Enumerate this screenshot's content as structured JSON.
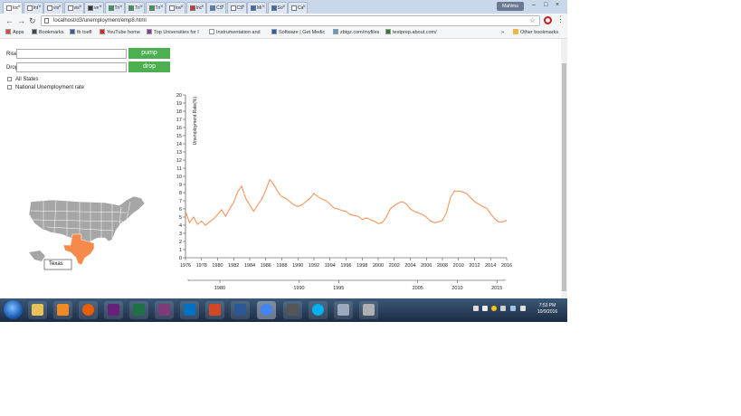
{
  "browser": {
    "tabs": [
      {
        "label": "loc",
        "active": true,
        "icon": "page-icon"
      },
      {
        "label": "Int",
        "icon": "page-icon"
      },
      {
        "label": "vis",
        "icon": "page-icon"
      },
      {
        "label": "vis",
        "icon": "page-icon"
      },
      {
        "label": "ve",
        "icon": "github-icon"
      },
      {
        "label": "Tri",
        "icon": "sheet-icon"
      },
      {
        "label": "Tri",
        "icon": "sheet-icon"
      },
      {
        "label": "Tri",
        "icon": "sheet-icon"
      },
      {
        "label": "lov",
        "icon": "page-icon"
      },
      {
        "label": "Inc",
        "icon": "gmail-icon"
      },
      {
        "label": "CS",
        "icon": "p-icon"
      },
      {
        "label": "CS",
        "icon": "page-icon"
      },
      {
        "label": "Mi",
        "icon": "mail-icon"
      },
      {
        "label": "So",
        "icon": "mail-icon"
      },
      {
        "label": "Ca",
        "icon": "page-icon"
      }
    ],
    "profile_label": "Mahima",
    "url": "localhost/d3/unemployment/emp8.html",
    "bookmarks": [
      {
        "label": "Apps",
        "icon": "apps-icon"
      },
      {
        "label": "Bookmarks",
        "icon": "star-icon"
      },
      {
        "label": "fb toefl",
        "icon": "facebook-icon"
      },
      {
        "label": "YouTube home",
        "icon": "youtube-icon"
      },
      {
        "label": "Top Universities for I",
        "icon": "uni-icon"
      },
      {
        "label": "Instrumentation and",
        "icon": "page-icon"
      },
      {
        "label": "Software | Get Medic",
        "icon": "software-icon"
      },
      {
        "label": "zbigz.com/myfiles",
        "icon": "cloud-icon"
      },
      {
        "label": "testprep.about.com/",
        "icon": "globe-icon"
      }
    ],
    "other_bookmarks": "Other bookmarks",
    "more_bookmarks": "»"
  },
  "controls": {
    "rise_label": "Rise",
    "drop_label": "Drop",
    "rise_value": "",
    "drop_value": "",
    "pump_button": "pump",
    "drop_button": "drop",
    "checkbox_all_states": "All States",
    "checkbox_national": "National Unemployment rate"
  },
  "map": {
    "highlighted_state": "Texas",
    "tooltip": "Texas",
    "base_color": "#a6a6a6",
    "highlight_color": "#f58a4b"
  },
  "chart_data": {
    "type": "line",
    "ylabel": "Unemployment Rate(%)",
    "xlabel": "",
    "title": "",
    "ylim": [
      0,
      20
    ],
    "xlim": [
      1976,
      2016
    ],
    "y_ticks": [
      0,
      1,
      2,
      3,
      4,
      5,
      6,
      7,
      8,
      9,
      10,
      11,
      12,
      13,
      14,
      15,
      16,
      17,
      18,
      19,
      20
    ],
    "x_ticks": [
      "1976",
      "1978",
      "1980",
      "1982",
      "1984",
      "1986",
      "1988",
      "1990",
      "1992",
      "1994",
      "1996",
      "1998",
      "2000",
      "2002",
      "2004",
      "2006",
      "2008",
      "2010",
      "2012",
      "2014",
      "2016"
    ],
    "context_ticks": [
      "1980",
      "1990",
      "1995",
      "2005",
      "2010",
      "2015"
    ],
    "context_tick_years": [
      1980,
      1990,
      1995,
      2005,
      2010,
      2015
    ],
    "line_color": "#f58a4b",
    "series": [
      {
        "x": [
          1976,
          1976.5,
          1977,
          1977.5,
          1978,
          1978.5,
          1979,
          1979.5,
          1980,
          1980.5,
          1981,
          1981.5,
          1982,
          1982.5,
          1983,
          1983.5,
          1984,
          1984.5,
          1985,
          1985.5,
          1986,
          1986.5,
          1987,
          1987.5,
          1988,
          1988.5,
          1989,
          1989.5,
          1990,
          1990.5,
          1991,
          1991.5,
          1992,
          1992.5,
          1993,
          1993.5,
          1994,
          1994.5,
          1995,
          1995.5,
          1996,
          1996.5,
          1997,
          1997.5,
          1998,
          1998.5,
          1999,
          1999.5,
          2000,
          2000.5,
          2001,
          2001.5,
          2002,
          2002.5,
          2003,
          2003.5,
          2004,
          2004.5,
          2005,
          2005.5,
          2006,
          2006.5,
          2007,
          2007.5,
          2008,
          2008.5,
          2009,
          2009.5,
          2010,
          2010.5,
          2011,
          2011.5,
          2012,
          2012.5,
          2013,
          2013.5,
          2014,
          2014.5,
          2015,
          2015.5,
          2016
        ],
        "values": [
          5.7,
          4.3,
          5.0,
          4.1,
          4.5,
          4.0,
          4.4,
          4.8,
          5.3,
          5.9,
          5.1,
          6.0,
          6.8,
          8.1,
          8.8,
          7.3,
          6.5,
          5.7,
          6.5,
          7.2,
          8.3,
          9.6,
          9.0,
          8.1,
          7.5,
          7.3,
          6.9,
          6.5,
          6.3,
          6.5,
          6.9,
          7.3,
          7.9,
          7.5,
          7.2,
          7.0,
          6.6,
          6.1,
          6.0,
          5.8,
          5.7,
          5.3,
          5.2,
          5.1,
          4.7,
          4.9,
          4.7,
          4.5,
          4.2,
          4.3,
          5.0,
          6.0,
          6.4,
          6.7,
          6.9,
          6.6,
          6.0,
          5.7,
          5.5,
          5.3,
          5.0,
          4.5,
          4.3,
          4.4,
          4.6,
          5.5,
          7.4,
          8.2,
          8.2,
          8.1,
          7.9,
          7.4,
          6.9,
          6.6,
          6.3,
          6.1,
          5.4,
          4.8,
          4.4,
          4.4,
          4.6
        ]
      }
    ]
  },
  "taskbar": {
    "apps": [
      "explorer-icon",
      "media-player-icon",
      "firefox-icon",
      "visual-studio-icon",
      "excel-icon",
      "onenote-icon",
      "outlook-icon",
      "powerpoint-icon",
      "word-icon",
      "chrome-icon",
      "terminal-icon",
      "skype-icon",
      "pen-tool-icon",
      "network-icon"
    ],
    "time": "7:53 PM",
    "date": "10/9/2016"
  }
}
